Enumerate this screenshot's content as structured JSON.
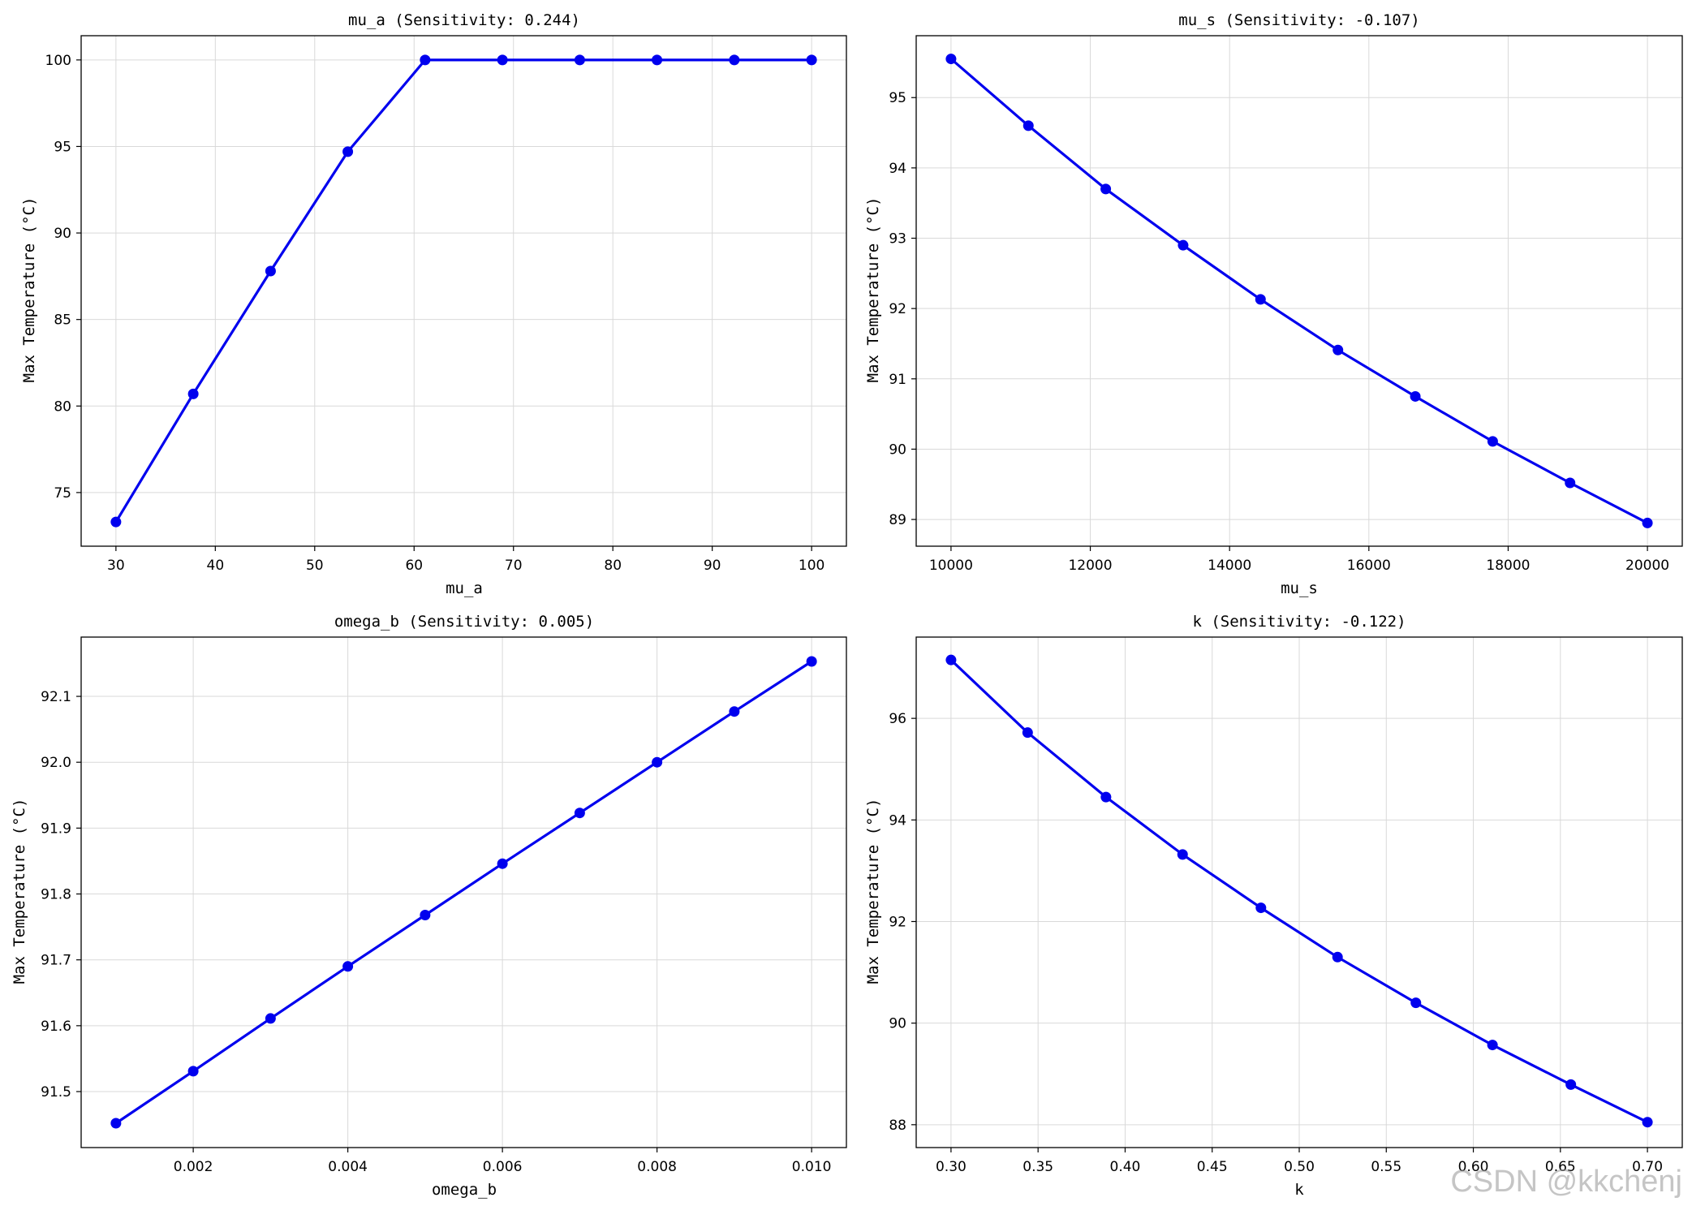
{
  "colors": {
    "series": "#0000ee",
    "grid": "#d9d9d9"
  },
  "watermark": "CSDN @kkchenj",
  "chart_data": [
    {
      "type": "line",
      "title": "mu_a (Sensitivity: 0.244)",
      "xlabel": "mu_a",
      "ylabel": "Max Temperature (°C)",
      "grid": true,
      "xlim": [
        26.5,
        103.5
      ],
      "ylim": [
        71.9,
        101.4
      ],
      "xticks": [
        30,
        40,
        50,
        60,
        70,
        80,
        90,
        100
      ],
      "xtick_labels": [
        "30",
        "40",
        "50",
        "60",
        "70",
        "80",
        "90",
        "100"
      ],
      "yticks": [
        75,
        80,
        85,
        90,
        95,
        100
      ],
      "ytick_labels": [
        "75",
        "80",
        "85",
        "90",
        "95",
        "100"
      ],
      "x": [
        30,
        37.78,
        45.56,
        53.33,
        61.11,
        68.89,
        76.67,
        84.44,
        92.22,
        100
      ],
      "y": [
        73.3,
        80.7,
        87.8,
        94.7,
        100,
        100,
        100,
        100,
        100,
        100
      ]
    },
    {
      "type": "line",
      "title": "mu_s (Sensitivity: -0.107)",
      "xlabel": "mu_s",
      "ylabel": "Max Temperature (°C)",
      "grid": true,
      "xlim": [
        9500,
        20500
      ],
      "ylim": [
        88.62,
        95.88
      ],
      "xticks": [
        10000,
        12000,
        14000,
        16000,
        18000,
        20000
      ],
      "xtick_labels": [
        "10000",
        "12000",
        "14000",
        "16000",
        "18000",
        "20000"
      ],
      "yticks": [
        89,
        90,
        91,
        92,
        93,
        94,
        95
      ],
      "ytick_labels": [
        "89",
        "90",
        "91",
        "92",
        "93",
        "94",
        "95"
      ],
      "x": [
        10000,
        11111,
        12222,
        13333,
        14444,
        15556,
        16667,
        17778,
        18889,
        20000
      ],
      "y": [
        95.55,
        94.6,
        93.7,
        92.9,
        92.13,
        91.41,
        90.75,
        90.11,
        89.52,
        88.95
      ]
    },
    {
      "type": "line",
      "title": "omega_b (Sensitivity: 0.005)",
      "xlabel": "omega_b",
      "ylabel": "Max Temperature (°C)",
      "grid": true,
      "xlim": [
        0.00055,
        0.01045
      ],
      "ylim": [
        91.415,
        92.19
      ],
      "xticks": [
        0.002,
        0.004,
        0.006,
        0.008,
        0.01
      ],
      "xtick_labels": [
        "0.002",
        "0.004",
        "0.006",
        "0.008",
        "0.010"
      ],
      "yticks": [
        91.5,
        91.6,
        91.7,
        91.8,
        91.9,
        92.0,
        92.1
      ],
      "ytick_labels": [
        "91.5",
        "91.6",
        "91.7",
        "91.8",
        "91.9",
        "92.0",
        "92.1"
      ],
      "x": [
        0.001,
        0.002,
        0.003,
        0.004,
        0.005,
        0.006,
        0.007,
        0.008,
        0.009,
        0.01
      ],
      "y": [
        91.452,
        91.531,
        91.611,
        91.69,
        91.768,
        91.846,
        91.923,
        92.0,
        92.077,
        92.153
      ]
    },
    {
      "type": "line",
      "title": "k (Sensitivity: -0.122)",
      "xlabel": "k",
      "ylabel": "Max Temperature (°C)",
      "grid": true,
      "xlim": [
        0.28,
        0.72
      ],
      "ylim": [
        87.55,
        97.6
      ],
      "xticks": [
        0.3,
        0.35,
        0.4,
        0.45,
        0.5,
        0.55,
        0.6,
        0.65,
        0.7
      ],
      "xtick_labels": [
        "0.30",
        "0.35",
        "0.40",
        "0.45",
        "0.50",
        "0.55",
        "0.60",
        "0.65",
        "0.70"
      ],
      "yticks": [
        88,
        90,
        92,
        94,
        96
      ],
      "ytick_labels": [
        "88",
        "90",
        "92",
        "94",
        "96"
      ],
      "x": [
        0.3,
        0.344,
        0.389,
        0.433,
        0.478,
        0.522,
        0.567,
        0.611,
        0.656,
        0.7
      ],
      "y": [
        97.15,
        95.72,
        94.45,
        93.32,
        92.27,
        91.3,
        90.4,
        89.57,
        88.79,
        88.05
      ]
    }
  ]
}
